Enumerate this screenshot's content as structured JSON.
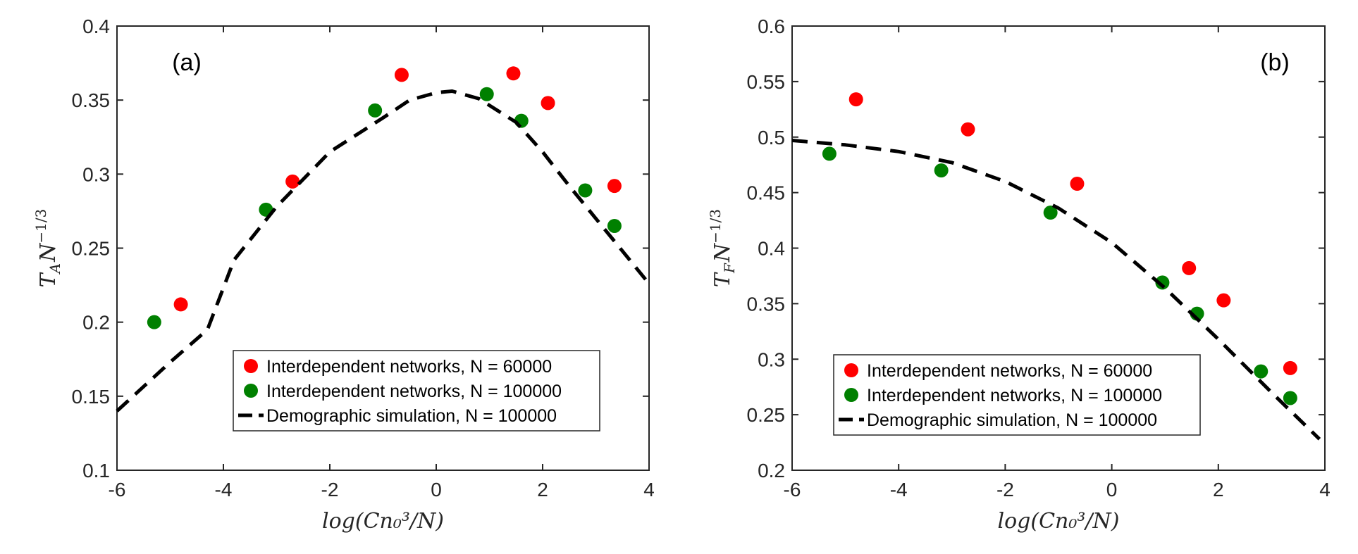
{
  "chart_data": [
    {
      "type": "scatter",
      "panel_label": "(a)",
      "xlabel": "log(Cn₀³/N)",
      "ylabel": "T_A N^{-1/3}",
      "ylabel_base": "T",
      "ylabel_sub": "A",
      "ylabel_mid": "N",
      "ylabel_sup": "−1/3",
      "xlim": [
        -6,
        4
      ],
      "ylim": [
        0.1,
        0.4
      ],
      "xticks": [
        -6,
        -4,
        -2,
        0,
        2,
        4
      ],
      "xtick_labels": [
        "-6",
        "-4",
        "-2",
        "0",
        "2",
        "4"
      ],
      "yticks": [
        0.1,
        0.15,
        0.2,
        0.25,
        0.3,
        0.35,
        0.4
      ],
      "ytick_labels": [
        "0.1",
        "0.15",
        "0.2",
        "0.25",
        "0.3",
        "0.35",
        "0.4"
      ],
      "legend_position": "lower-right",
      "series": [
        {
          "name": "Interdependent networks, N = 60000",
          "kind": "points",
          "color": "#ff0000",
          "x": [
            -4.8,
            -2.7,
            -0.65,
            1.45,
            2.1,
            3.35
          ],
          "y": [
            0.212,
            0.295,
            0.367,
            0.368,
            0.348,
            0.292
          ]
        },
        {
          "name": "Interdependent networks, N = 100000",
          "kind": "points",
          "color": "#008000",
          "x": [
            -5.3,
            -3.2,
            -1.15,
            0.95,
            1.6,
            2.8,
            3.35
          ],
          "y": [
            0.2,
            0.276,
            0.343,
            0.354,
            0.336,
            0.289,
            0.265
          ]
        },
        {
          "name": "Demographic simulation, N = 100000",
          "kind": "dashed-line",
          "color": "#000000",
          "x": [
            -6,
            -5,
            -4.3,
            -3.8,
            -3,
            -2,
            -1,
            -0.5,
            0,
            0.3,
            0.8,
            1.5,
            2,
            2.5,
            3,
            3.5,
            4
          ],
          "y": [
            0.14,
            0.173,
            0.195,
            0.242,
            0.278,
            0.315,
            0.338,
            0.35,
            0.355,
            0.356,
            0.351,
            0.335,
            0.315,
            0.292,
            0.27,
            0.248,
            0.226
          ]
        }
      ]
    },
    {
      "type": "scatter",
      "panel_label": "(b)",
      "xlabel": "log(Cn₀³/N)",
      "ylabel": "T_F N^{-1/3}",
      "ylabel_base": "T",
      "ylabel_sub": "F",
      "ylabel_mid": "N",
      "ylabel_sup": "−1/3",
      "xlim": [
        -6,
        4
      ],
      "ylim": [
        0.2,
        0.6
      ],
      "xticks": [
        -6,
        -4,
        -2,
        0,
        2,
        4
      ],
      "xtick_labels": [
        "-6",
        "-4",
        "-2",
        "0",
        "2",
        "4"
      ],
      "yticks": [
        0.2,
        0.25,
        0.3,
        0.35,
        0.4,
        0.45,
        0.5,
        0.55,
        0.6
      ],
      "ytick_labels": [
        "0.2",
        "0.25",
        "0.3",
        "0.35",
        "0.4",
        "0.45",
        "0.5",
        "0.55",
        "0.6"
      ],
      "legend_position": "lower-left",
      "series": [
        {
          "name": "Interdependent networks, N = 60000",
          "kind": "points",
          "color": "#ff0000",
          "x": [
            -4.8,
            -2.7,
            -0.65,
            1.45,
            2.1,
            3.35
          ],
          "y": [
            0.534,
            0.507,
            0.458,
            0.382,
            0.353,
            0.292
          ]
        },
        {
          "name": "Interdependent networks, N = 100000",
          "kind": "points",
          "color": "#008000",
          "x": [
            -5.3,
            -3.2,
            -1.15,
            0.95,
            1.6,
            2.8,
            3.35
          ],
          "y": [
            0.485,
            0.47,
            0.432,
            0.369,
            0.341,
            0.289,
            0.265
          ]
        },
        {
          "name": "Demographic simulation, N = 100000",
          "kind": "dashed-line",
          "color": "#000000",
          "x": [
            -6,
            -5,
            -4,
            -3,
            -2,
            -1,
            0,
            1,
            2,
            3,
            3.9
          ],
          "y": [
            0.497,
            0.493,
            0.487,
            0.477,
            0.46,
            0.436,
            0.405,
            0.364,
            0.318,
            0.27,
            0.228
          ]
        }
      ]
    }
  ]
}
